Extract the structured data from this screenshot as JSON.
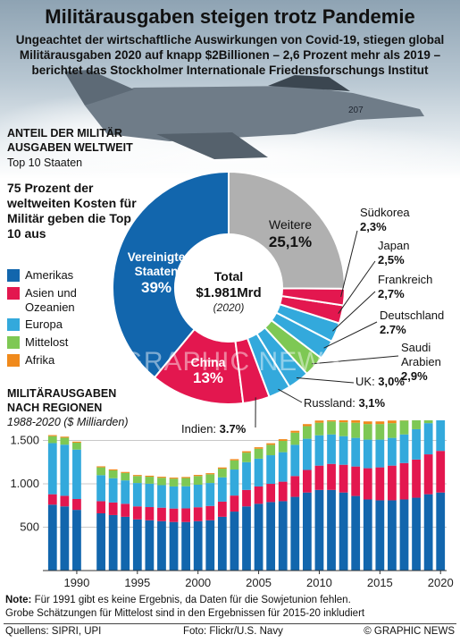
{
  "title": "Militärausgaben steigen trotz Pandemie",
  "subtitle": "Ungeachtet der wirtschaftliche Auswirkungen von Covid-19, stiegen global Militärausgaben 2020 auf knapp $2Billionen – 2,6 Prozent mehr als 2019 – berichtet das Stockholmer Internationale Friedensforschungs Institut",
  "hero": {
    "tail_number": "207"
  },
  "donut": {
    "heading_line1": "ANTEIL DER MILITÄR",
    "heading_line2": "AUSGABEN WELTWEIT",
    "subheading": "Top 10 Staaten",
    "callout": "75 Prozent der weltweiten Kosten für Militär geben die Top 10 aus",
    "center_label": "Total",
    "center_value": "$1.981Mrd",
    "center_year": "(2020)"
  },
  "legend": [
    {
      "label": "Amerikas",
      "color": "#1266ad"
    },
    {
      "label": "Asien und Ozeanien",
      "color": "#e3174f"
    },
    {
      "label": "Europa",
      "color": "#33a9dc"
    },
    {
      "label": "Mittelost",
      "color": "#7ec854"
    },
    {
      "label": "Afrika",
      "color": "#f08a1c"
    }
  ],
  "bars": {
    "heading_line1": "MILITÄRAUSGABEN",
    "heading_line2": "NACH REGIONEN",
    "subheading": "1988-2020 ($ Milliarden)"
  },
  "note_line1": "Note: Für 1991 gibt es keine Ergebnis, da Daten für die Sowjetunion fehlen.",
  "note_line2": "Grobe Schätzungen für Mittelost sind in den Ergebnissen für 2015-20 inkludiert",
  "sources": "Quellens: SIPRI, UPI",
  "photo_credit": "Foto: Flickr/U.S. Navy",
  "brand": "© GRAPHIC NEWS",
  "watermark": "GRAPHIC NEWS",
  "chart_data": [
    {
      "type": "pie",
      "variant": "donut",
      "slices": [
        {
          "label": "Vereinigte Staaten",
          "value": 39,
          "value_label": "39%",
          "color": "#1266ad"
        },
        {
          "label": "China",
          "value": 13,
          "value_label": "13%",
          "color": "#e3174f"
        },
        {
          "label": "Indien",
          "value": 3.7,
          "value_label": "3.7%",
          "color": "#e3174f"
        },
        {
          "label": "Russland",
          "value": 3.1,
          "value_label": "3,1%",
          "color": "#33a9dc"
        },
        {
          "label": "UK",
          "value": 3.0,
          "value_label": "3,0%",
          "color": "#33a9dc"
        },
        {
          "label": "Saudi Arabien",
          "value": 2.9,
          "value_label": "2,9%",
          "color": "#7ec854"
        },
        {
          "label": "Deutschland",
          "value": 2.7,
          "value_label": "2.7%",
          "color": "#33a9dc"
        },
        {
          "label": "Frankreich",
          "value": 2.7,
          "value_label": "2,7%",
          "color": "#33a9dc"
        },
        {
          "label": "Japan",
          "value": 2.5,
          "value_label": "2,5%",
          "color": "#e3174f"
        },
        {
          "label": "Südkorea",
          "value": 2.3,
          "value_label": "2,3%",
          "color": "#e3174f"
        },
        {
          "label": "Weitere",
          "value": 25.1,
          "value_label": "25,1%",
          "color": "#b0b0b0"
        }
      ]
    },
    {
      "type": "bar",
      "stacked": true,
      "title": "MILITÄRAUSGABEN NACH REGIONEN",
      "subtitle": "1988-2020 ($ Milliarden)",
      "x": [
        1988,
        1989,
        1990,
        1991,
        1992,
        1993,
        1994,
        1995,
        1996,
        1997,
        1998,
        1999,
        2000,
        2001,
        2002,
        2003,
        2004,
        2005,
        2006,
        2007,
        2008,
        2009,
        2010,
        2011,
        2012,
        2013,
        2014,
        2015,
        2016,
        2017,
        2018,
        2019,
        2020
      ],
      "x_ticks": [
        "1990",
        "1995",
        "2000",
        "2005",
        "2010",
        "2015",
        "2020"
      ],
      "y_ticks": [
        "500",
        "1.000",
        "1.500"
      ],
      "ylim": [
        0,
        1650
      ],
      "grid": true,
      "series": [
        {
          "name": "Amerikas",
          "color": "#1266ad",
          "values": [
            760,
            740,
            700,
            null,
            660,
            640,
            620,
            590,
            580,
            570,
            560,
            560,
            570,
            580,
            620,
            680,
            740,
            770,
            790,
            800,
            850,
            900,
            930,
            930,
            900,
            860,
            820,
            810,
            810,
            820,
            840,
            880,
            900
          ]
        },
        {
          "name": "Asien und Ozeanien",
          "color": "#e3174f",
          "values": [
            120,
            122,
            125,
            null,
            140,
            145,
            150,
            150,
            152,
            155,
            155,
            157,
            160,
            165,
            175,
            185,
            190,
            200,
            210,
            225,
            240,
            260,
            280,
            300,
            320,
            340,
            360,
            380,
            400,
            420,
            440,
            460,
            480
          ]
        },
        {
          "name": "Europa",
          "color": "#33a9dc",
          "values": [
            590,
            590,
            570,
            null,
            300,
            280,
            270,
            270,
            270,
            260,
            255,
            255,
            260,
            265,
            280,
            300,
            320,
            320,
            330,
            340,
            360,
            360,
            350,
            340,
            330,
            330,
            330,
            320,
            320,
            330,
            350,
            360,
            370
          ]
        },
        {
          "name": "Mittelost",
          "color": "#7ec854",
          "values": [
            80,
            80,
            80,
            null,
            90,
            90,
            85,
            80,
            80,
            85,
            90,
            95,
            100,
            100,
            100,
            105,
            110,
            115,
            120,
            130,
            140,
            145,
            145,
            150,
            160,
            175,
            180,
            180,
            170,
            160,
            150,
            150,
            150
          ]
        },
        {
          "name": "Afrika",
          "color": "#f08a1c",
          "values": [
            12,
            12,
            12,
            null,
            12,
            12,
            12,
            12,
            12,
            12,
            12,
            12,
            13,
            13,
            14,
            15,
            16,
            17,
            18,
            20,
            22,
            24,
            25,
            26,
            27,
            29,
            30,
            30,
            30,
            30,
            30,
            30,
            32
          ]
        }
      ]
    }
  ]
}
